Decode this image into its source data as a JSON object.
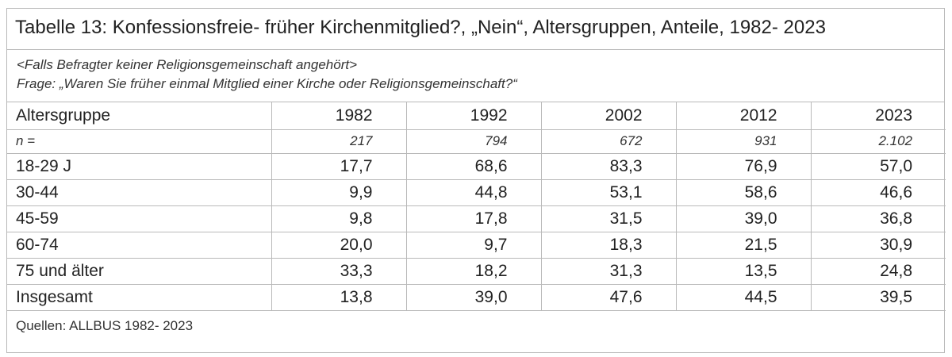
{
  "title": "Tabelle 13: Konfessionsfreie- früher Kirchenmitglied?, „Nein“, Altersgruppen, Anteile, 1982- 2023",
  "subtitle": {
    "line1": "<Falls Befragter keiner Religionsgemeinschaft angehört>",
    "line2": "Frage: „Waren Sie früher einmal Mitglied einer Kirche oder Religionsgemeinschaft?“"
  },
  "table": {
    "header": [
      "Altersgruppe",
      "1982",
      "1992",
      "2002",
      "2012",
      "2023"
    ],
    "n_row": [
      "n =",
      "217",
      "794",
      "672",
      "931",
      "2.102"
    ],
    "rows": [
      [
        "18-29 J",
        "17,7",
        "68,6",
        "83,3",
        "76,9",
        "57,0"
      ],
      [
        "30-44",
        "9,9",
        "44,8",
        "53,1",
        "58,6",
        "46,6"
      ],
      [
        "45-59",
        "9,8",
        "17,8",
        "31,5",
        "39,0",
        "36,8"
      ],
      [
        "60-74",
        "20,0",
        "9,7",
        "18,3",
        "21,5",
        "30,9"
      ],
      [
        "75 und älter",
        "33,3",
        "18,2",
        "31,3",
        "13,5",
        "24,8"
      ],
      [
        "Insgesamt",
        "13,8",
        "39,0",
        "47,6",
        "44,5",
        "39,5"
      ]
    ]
  },
  "source": "Quellen: ALLBUS 1982- 2023"
}
